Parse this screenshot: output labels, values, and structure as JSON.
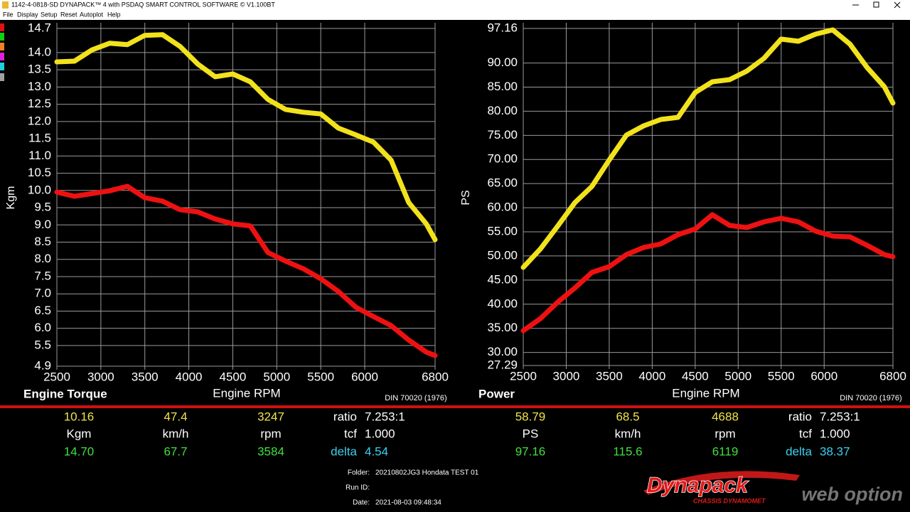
{
  "window": {
    "title": "1142-4-0818-SD DYNAPACK™ 4 with PSDAQ SMART CONTROL SOFTWARE © V1.100BT"
  },
  "menu": [
    "File",
    "Display",
    "Setup",
    "Reset",
    "Autoplot",
    "Help"
  ],
  "chart_data": [
    {
      "type": "line",
      "title": "Engine Torque",
      "x_label": "Engine RPM",
      "y_label": "Kgm",
      "note": "DIN 70020 (1976)",
      "x": [
        2500,
        2700,
        2900,
        3100,
        3300,
        3500,
        3700,
        3900,
        4100,
        4300,
        4500,
        4700,
        4900,
        5100,
        5300,
        5500,
        5700,
        5900,
        6100,
        6300,
        6500,
        6700,
        6800
      ],
      "xlim": [
        2500,
        6800
      ],
      "xticks": [
        2500,
        3000,
        3500,
        4000,
        4500,
        5000,
        5500,
        6000,
        6800
      ],
      "ylim": [
        4.9,
        14.7
      ],
      "yticks": [
        4.9,
        5.5,
        {
          "value": 6,
          "label": "6.0"
        },
        6.5,
        {
          "value": 7,
          "label": "7.0"
        },
        7.5,
        {
          "value": 8,
          "label": "8.0"
        },
        8.5,
        {
          "value": 9,
          "label": "9.0"
        },
        9.5,
        {
          "value": 10,
          "label": "10.0"
        },
        10.5,
        {
          "value": 11,
          "label": "11.0"
        },
        11.5,
        {
          "value": 12,
          "label": "12.0"
        },
        12.5,
        {
          "value": 13,
          "label": "13.0"
        },
        13.5,
        {
          "value": 14,
          "label": "14.0"
        },
        14.7
      ],
      "grid": true,
      "series": [
        {
          "color": "#f2e21c",
          "values": [
            13.73,
            13.75,
            14.08,
            14.27,
            14.23,
            14.5,
            14.52,
            14.18,
            13.67,
            13.3,
            13.38,
            13.15,
            12.64,
            12.35,
            12.27,
            12.22,
            11.81,
            11.61,
            11.4,
            10.88,
            9.65,
            9.03,
            8.57
          ]
        },
        {
          "color": "#ee1111",
          "values": [
            9.95,
            9.83,
            9.91,
            9.99,
            10.12,
            9.79,
            9.69,
            9.44,
            9.38,
            9.17,
            9.03,
            8.97,
            8.2,
            7.95,
            7.73,
            7.44,
            7.07,
            6.61,
            6.34,
            6.08,
            5.66,
            5.31,
            5.21
          ]
        }
      ]
    },
    {
      "type": "line",
      "title": "Power",
      "x_label": "Engine RPM",
      "y_label": "PS",
      "note": "DIN 70020 (1976)",
      "x": [
        2500,
        2700,
        2900,
        3100,
        3300,
        3500,
        3700,
        3900,
        4100,
        4300,
        4500,
        4700,
        4900,
        5100,
        5300,
        5500,
        5700,
        5900,
        6100,
        6300,
        6500,
        6700,
        6800
      ],
      "xlim": [
        2500,
        6800
      ],
      "xticks": [
        2500,
        3000,
        3500,
        4000,
        4500,
        5000,
        5500,
        6000,
        6800
      ],
      "ylim": [
        27.29,
        97.16
      ],
      "yticks": [
        27.29,
        {
          "value": 30,
          "label": "30.00"
        },
        {
          "value": 35,
          "label": "35.00"
        },
        {
          "value": 40,
          "label": "40.00"
        },
        {
          "value": 45,
          "label": "45.00"
        },
        {
          "value": 50,
          "label": "50.00"
        },
        {
          "value": 55,
          "label": "55.00"
        },
        {
          "value": 60,
          "label": "60.00"
        },
        {
          "value": 65,
          "label": "65.00"
        },
        {
          "value": 70,
          "label": "70.00"
        },
        {
          "value": 75,
          "label": "75.00"
        },
        {
          "value": 80,
          "label": "80.00"
        },
        {
          "value": 85,
          "label": "85.00"
        },
        {
          "value": 90,
          "label": "90.00"
        },
        97.16
      ],
      "grid": true,
      "series": [
        {
          "color": "#f2e21c",
          "values": [
            47.63,
            51.46,
            56.18,
            61.05,
            64.44,
            69.89,
            75.05,
            76.96,
            78.29,
            78.73,
            83.89,
            86.1,
            86.55,
            88.32,
            90.97,
            94.95,
            94.51,
            95.98,
            96.87,
            93.92,
            89.05,
            85.07,
            81.68
          ]
        },
        {
          "color": "#ee1111",
          "values": [
            34.51,
            37.02,
            40.41,
            43.36,
            46.6,
            47.78,
            50.29,
            51.76,
            52.5,
            54.41,
            55.59,
            58.54,
            56.33,
            55.89,
            57.07,
            57.81,
            57.07,
            55.15,
            54.12,
            53.97,
            52.2,
            50.29,
            49.84
          ]
        }
      ]
    }
  ],
  "readouts": [
    {
      "rows": [
        [
          "10.16",
          "47.4",
          "3247",
          "ratio",
          "7.253:1"
        ],
        [
          "Kgm",
          "km/h",
          "rpm",
          "tcf",
          "1.000"
        ],
        [
          "14.70",
          "67.7",
          "3584",
          "delta",
          "4.54"
        ]
      ]
    },
    {
      "rows": [
        [
          "58.79",
          "68.5",
          "4688",
          "ratio",
          "7.253:1"
        ],
        [
          "PS",
          "km/h",
          "rpm",
          "tcf",
          "1.000"
        ],
        [
          "97.16",
          "115.6",
          "6119",
          "delta",
          "38.37"
        ]
      ]
    }
  ],
  "info": {
    "folder_label": "Folder:",
    "folder": "20210802JG3 Hondata TEST 01",
    "run_label": "Run ID:",
    "date_label": "Date:",
    "date": "2021-08-03 09:48:34"
  },
  "logo": {
    "brand": "Dynapack",
    "tagline": "CHASSIS DYNAMOMET",
    "watermark": "web option"
  }
}
